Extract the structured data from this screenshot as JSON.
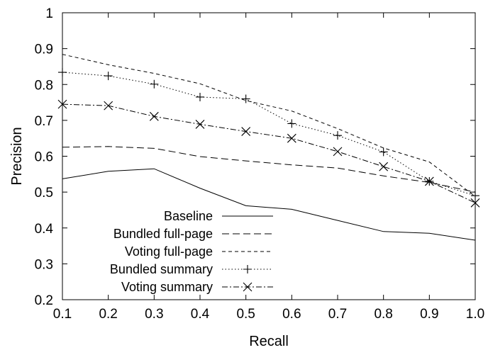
{
  "chart_data": {
    "type": "line",
    "title": "",
    "xlabel": "Recall",
    "ylabel": "Precision",
    "xlim": [
      0.1,
      1.0
    ],
    "ylim": [
      0.2,
      1.0
    ],
    "xticks": [
      "0.1",
      "0.2",
      "0.3",
      "0.4",
      "0.5",
      "0.6",
      "0.7",
      "0.8",
      "0.9",
      "1.0"
    ],
    "yticks": [
      "0.2",
      "0.3",
      "0.4",
      "0.5",
      "0.6",
      "0.7",
      "0.8",
      "0.9",
      "1"
    ],
    "grid": false,
    "legend_position": "bottom-left",
    "series": [
      {
        "name": "Baseline",
        "style": "solid",
        "marker": "none",
        "x": [
          0.1,
          0.2,
          0.3,
          0.4,
          0.5,
          0.6,
          0.7,
          0.8,
          0.9,
          1.0
        ],
        "y": [
          0.537,
          0.558,
          0.565,
          0.511,
          0.462,
          0.452,
          0.421,
          0.39,
          0.385,
          0.366
        ]
      },
      {
        "name": "Bundled full-page",
        "style": "dashed",
        "marker": "none",
        "x": [
          0.1,
          0.2,
          0.3,
          0.4,
          0.5,
          0.6,
          0.7,
          0.8,
          0.9,
          1.0
        ],
        "y": [
          0.625,
          0.627,
          0.622,
          0.599,
          0.587,
          0.576,
          0.567,
          0.545,
          0.527,
          0.5
        ]
      },
      {
        "name": "Voting full-page",
        "style": "short-dashed",
        "marker": "none",
        "x": [
          0.1,
          0.2,
          0.3,
          0.4,
          0.5,
          0.6,
          0.7,
          0.8,
          0.9,
          1.0
        ],
        "y": [
          0.884,
          0.855,
          0.831,
          0.802,
          0.755,
          0.726,
          0.677,
          0.623,
          0.584,
          0.488
        ]
      },
      {
        "name": "Bundled summary",
        "style": "dotted",
        "marker": "plus",
        "x": [
          0.1,
          0.2,
          0.3,
          0.4,
          0.5,
          0.6,
          0.7,
          0.8,
          0.9,
          1.0
        ],
        "y": [
          0.834,
          0.824,
          0.801,
          0.765,
          0.76,
          0.691,
          0.658,
          0.612,
          0.53,
          0.49
        ]
      },
      {
        "name": "Voting summary",
        "style": "dash-dot",
        "marker": "x",
        "x": [
          0.1,
          0.2,
          0.3,
          0.4,
          0.5,
          0.6,
          0.7,
          0.8,
          0.9,
          1.0
        ],
        "y": [
          0.745,
          0.741,
          0.711,
          0.689,
          0.669,
          0.65,
          0.613,
          0.571,
          0.53,
          0.47
        ]
      }
    ]
  }
}
